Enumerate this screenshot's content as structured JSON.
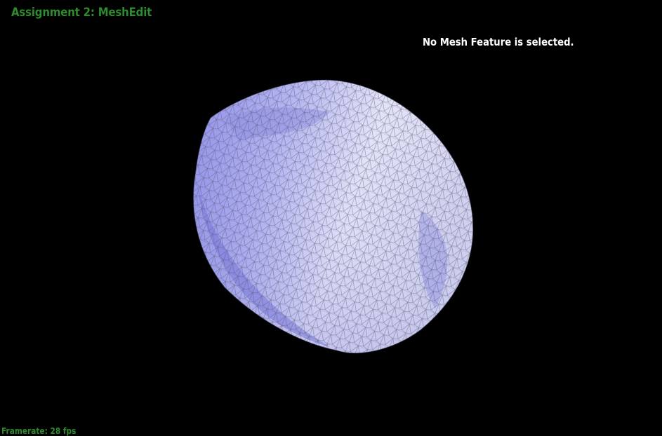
{
  "app": {
    "title": "Assignment 2: MeshEdit",
    "title_color": "#2e8b2e"
  },
  "status": {
    "message": "No Mesh Feature is selected."
  },
  "footer": {
    "framerate": "Framerate: 28 fps",
    "framerate_color": "#2e8b2e"
  },
  "scene": {
    "background": "#000000",
    "mesh_shape": "torus",
    "mesh_fill": "#b8b8f0",
    "mesh_shadow": "#7a7ad8",
    "mesh_highlight": "#f2f2ff",
    "wireframe_color": "#3a3a5a"
  }
}
